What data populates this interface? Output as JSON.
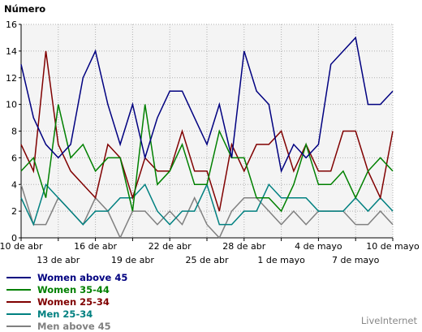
{
  "brand": "LiveInternet",
  "chart_data": {
    "type": "line",
    "ylabel": "Número",
    "ylim": [
      0,
      16
    ],
    "yticks": [
      0,
      2,
      4,
      6,
      8,
      10,
      12,
      14,
      16
    ],
    "x_start_tick_labels_row1": [
      "10 de abr",
      "16 de abr",
      "22 de abr",
      "28 de abr",
      "4 de mayo",
      "10 de mayo"
    ],
    "x_tick_labels_row2": [
      "13 de abr",
      "19 de abr",
      "25 de abr",
      "1 de mayo",
      "7 de mayo"
    ],
    "x": [
      "10 de abr",
      "11 de abr",
      "12 de abr",
      "13 de abr",
      "14 de abr",
      "15 de abr",
      "16 de abr",
      "17 de abr",
      "18 de abr",
      "19 de abr",
      "20 de abr",
      "21 de abr",
      "22 de abr",
      "23 de abr",
      "24 de abr",
      "25 de abr",
      "26 de abr",
      "27 de abr",
      "28 de abr",
      "29 de abr",
      "30 de abr",
      "1 de mayo",
      "2 de mayo",
      "3 de mayo",
      "4 de mayo",
      "5 de mayo",
      "6 de mayo",
      "7 de mayo",
      "8 de mayo",
      "9 de mayo",
      "10 de mayo"
    ],
    "grid": true,
    "legend_position": "bottom-left",
    "series": [
      {
        "name": "Women above 45",
        "color": "#000080",
        "values": [
          13,
          9,
          7,
          6,
          7,
          12,
          14,
          10,
          7,
          10,
          6,
          9,
          11,
          11,
          9,
          7,
          10,
          6,
          14,
          11,
          10,
          5,
          7,
          6,
          7,
          13,
          14,
          15,
          10,
          10,
          11
        ]
      },
      {
        "name": "Women 35-44",
        "color": "#008000",
        "values": [
          5,
          6,
          3,
          10,
          6,
          7,
          5,
          6,
          6,
          2,
          10,
          4,
          5,
          7,
          4,
          4,
          8,
          6,
          6,
          3,
          3,
          2,
          4,
          7,
          4,
          4,
          5,
          3,
          5,
          6,
          5
        ]
      },
      {
        "name": "Women 25-34",
        "color": "#800000",
        "values": [
          7,
          5,
          14,
          7,
          5,
          4,
          3,
          7,
          6,
          3,
          6,
          5,
          5,
          8,
          5,
          5,
          2,
          7,
          5,
          7,
          7,
          8,
          5,
          7,
          5,
          5,
          8,
          8,
          5,
          3,
          8
        ]
      },
      {
        "name": "Men 25-34",
        "color": "#008080",
        "values": [
          3,
          1,
          4,
          3,
          2,
          1,
          2,
          2,
          3,
          3,
          4,
          2,
          1,
          2,
          2,
          4,
          1,
          1,
          2,
          2,
          4,
          3,
          3,
          3,
          2,
          2,
          2,
          3,
          2,
          3,
          2
        ]
      },
      {
        "name": "Men above 45",
        "color": "#808080",
        "values": [
          4,
          1,
          1,
          3,
          2,
          1,
          3,
          2,
          0,
          2,
          2,
          1,
          2,
          1,
          3,
          1,
          0,
          2,
          3,
          3,
          2,
          1,
          2,
          1,
          2,
          2,
          2,
          1,
          1,
          2,
          1
        ]
      }
    ]
  }
}
